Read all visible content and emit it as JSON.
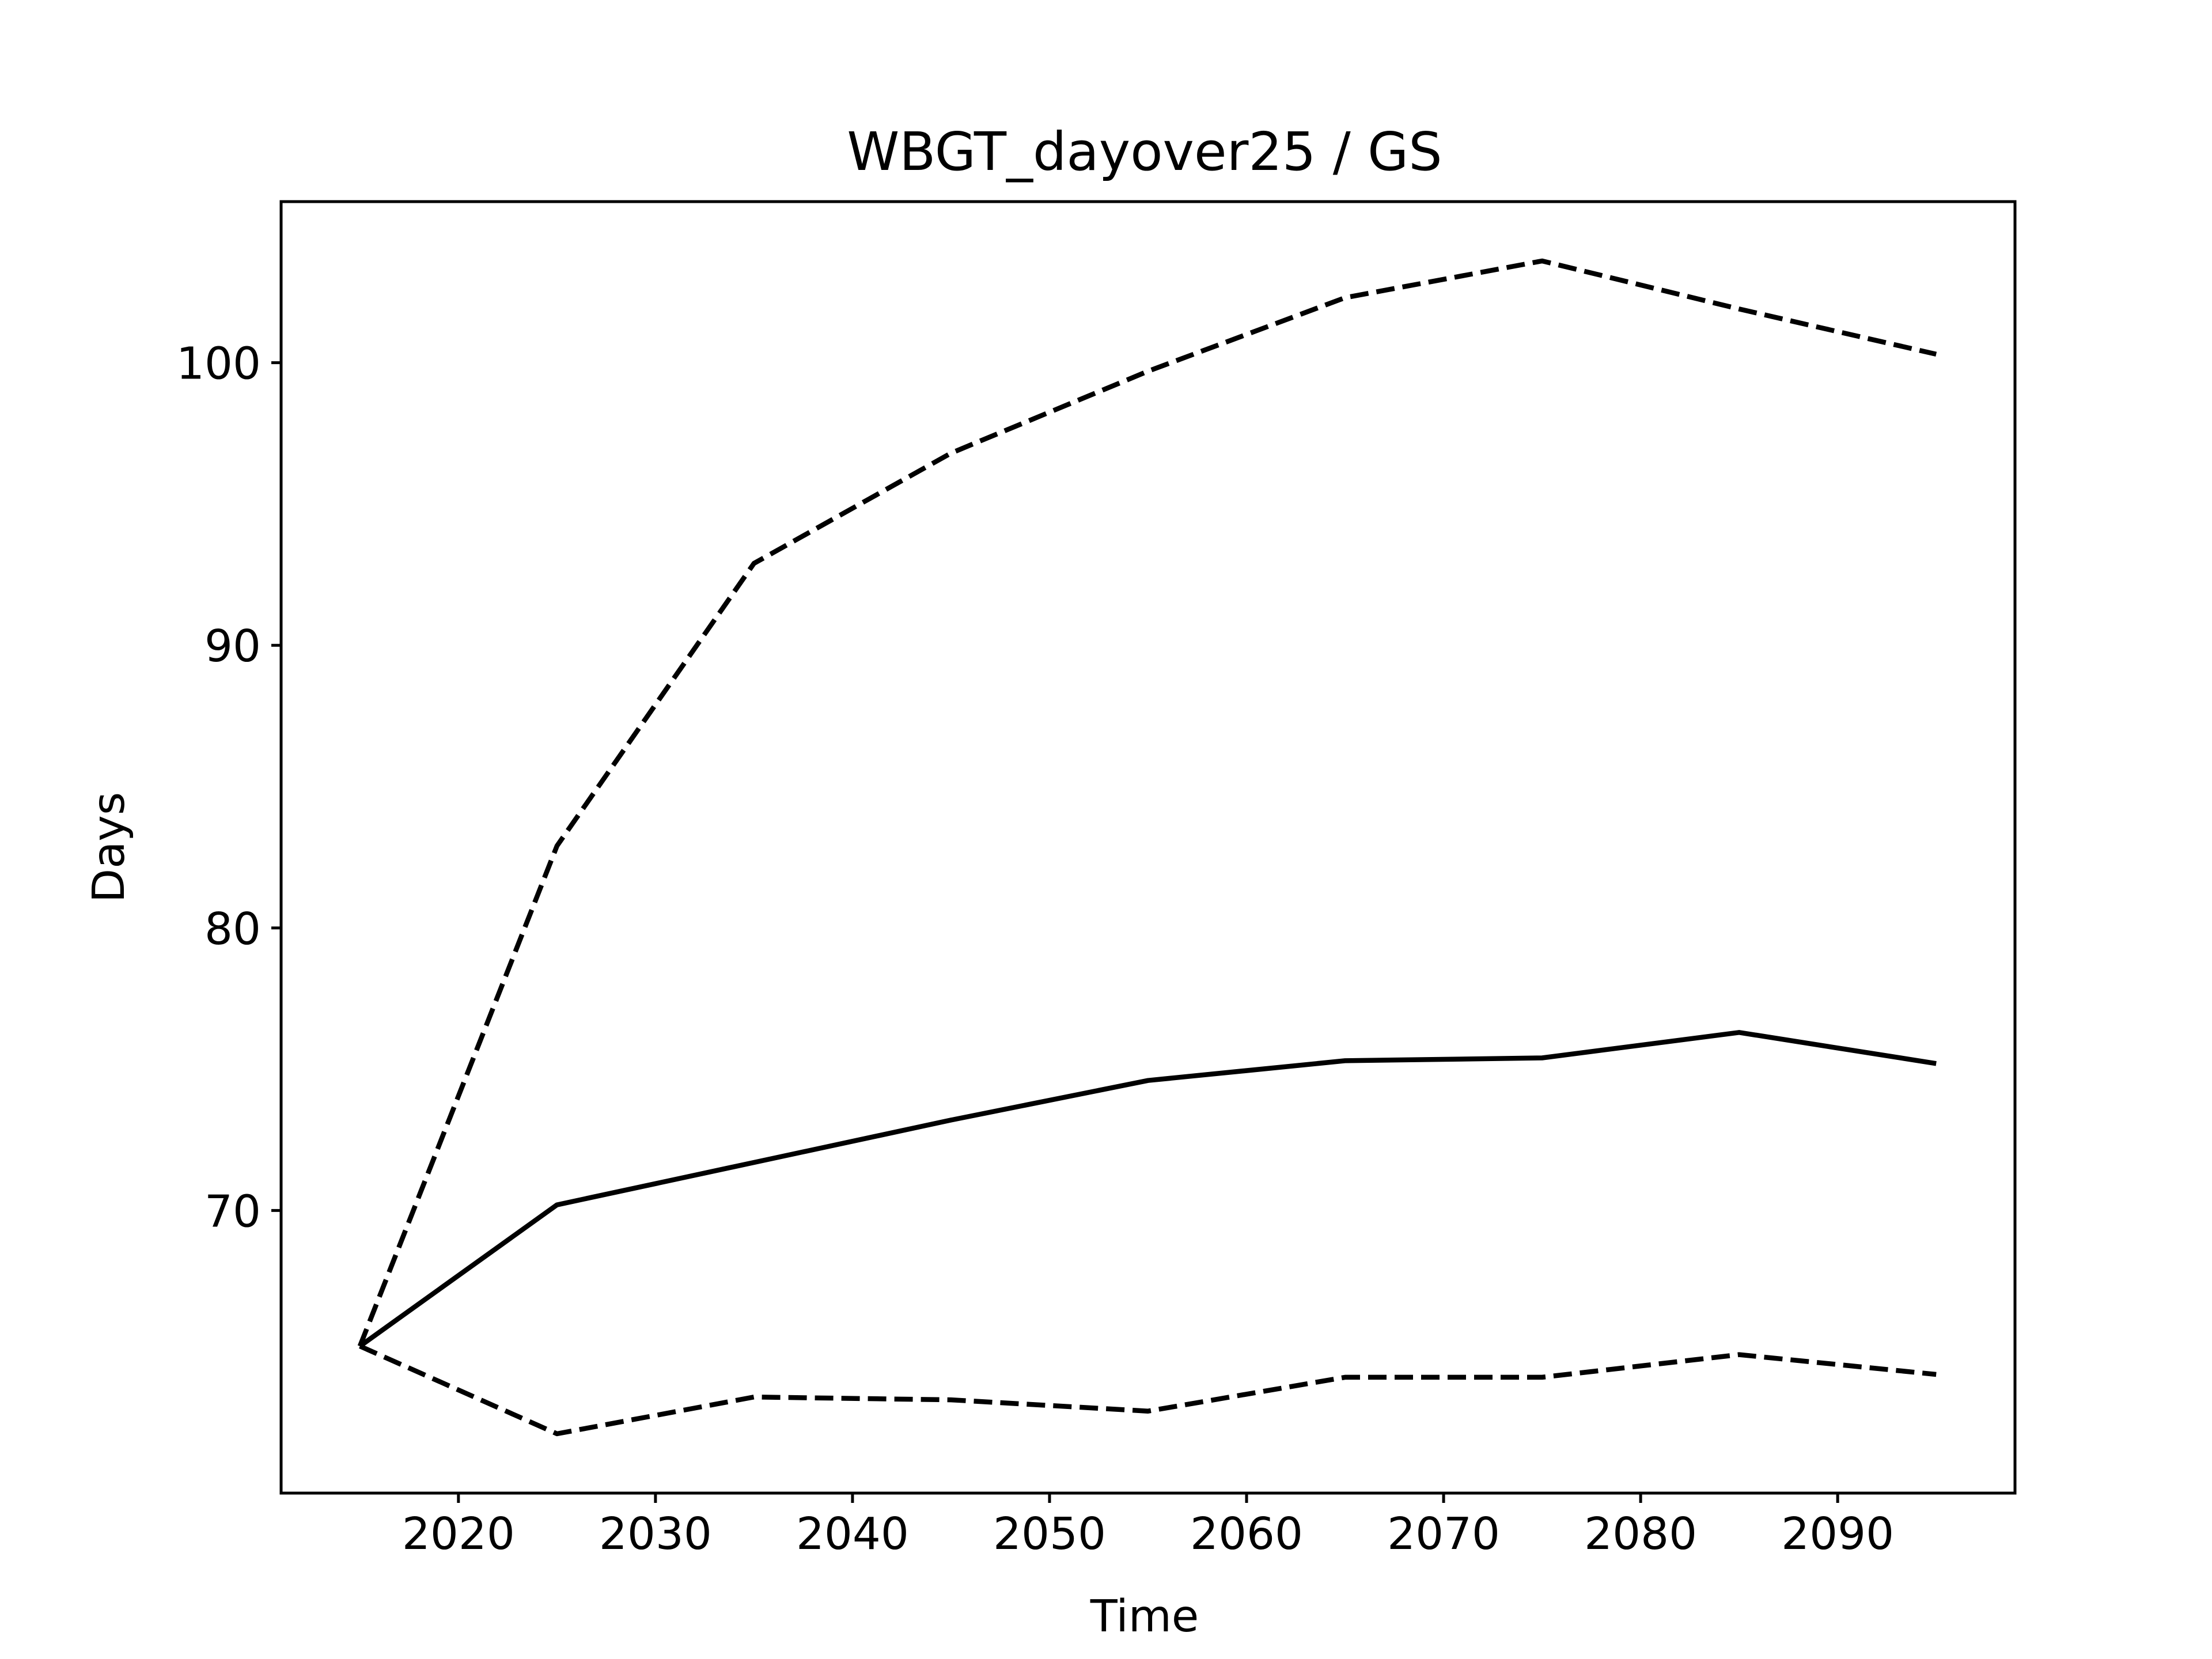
{
  "chart_data": {
    "type": "line",
    "title": "WBGT_dayover25 / GS",
    "xlabel": "Time",
    "ylabel": "Days",
    "xlim": [
      2011,
      2099
    ],
    "ylim": [
      60,
      105.7
    ],
    "xticks": [
      2020,
      2030,
      2040,
      2050,
      2060,
      2070,
      2080,
      2090
    ],
    "yticks": [
      70,
      80,
      90,
      100
    ],
    "grid": false,
    "x": [
      2015,
      2025,
      2035,
      2045,
      2055,
      2065,
      2075,
      2085,
      2095
    ],
    "series": [
      {
        "style": "dashed",
        "color": "#000000",
        "values": [
          65.2,
          82.9,
          92.9,
          96.8,
          99.7,
          102.3,
          103.6,
          101.9,
          100.3
        ]
      },
      {
        "style": "solid",
        "color": "#000000",
        "values": [
          65.2,
          70.2,
          71.7,
          73.2,
          74.6,
          75.3,
          75.4,
          76.3,
          75.2
        ]
      },
      {
        "style": "dashed",
        "color": "#000000",
        "values": [
          65.2,
          62.1,
          63.4,
          63.3,
          62.9,
          64.1,
          64.1,
          64.9,
          64.2
        ]
      }
    ]
  }
}
